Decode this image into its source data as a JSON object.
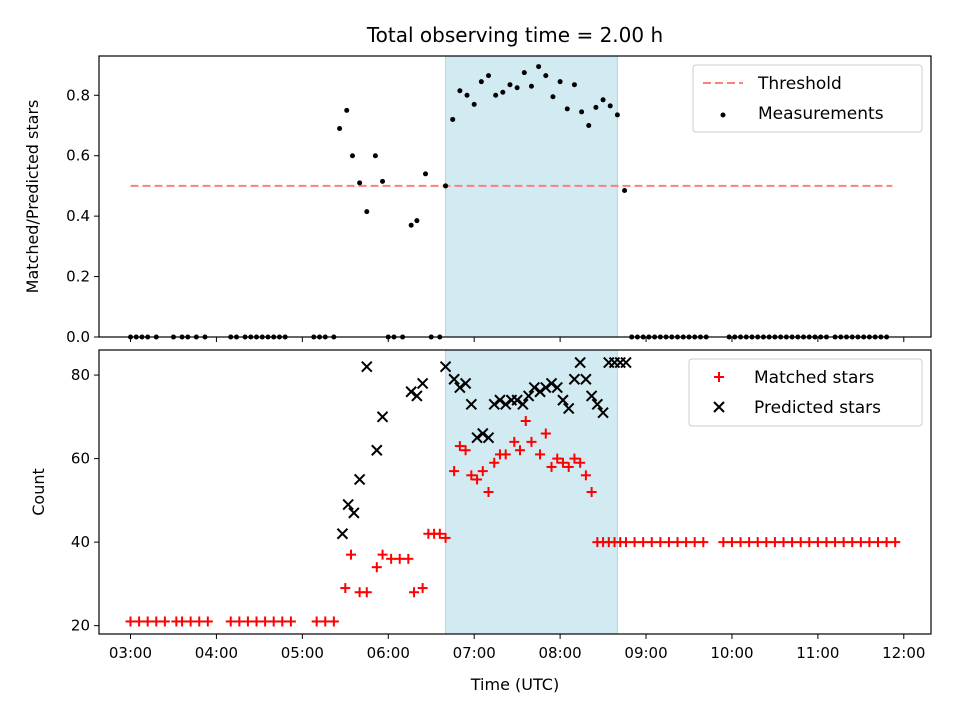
{
  "chart_data": [
    {
      "type": "scatter",
      "title": "Total observing time = 2.00 h",
      "xlabel": "",
      "ylabel": "Matched/Predicted stars",
      "x_ticks": [
        "03:00",
        "04:00",
        "05:00",
        "06:00",
        "07:00",
        "08:00",
        "09:00",
        "10:00",
        "11:00",
        "12:00"
      ],
      "y_ticks": [
        "0.0",
        "0.2",
        "0.4",
        "0.6",
        "0.8"
      ],
      "xlim": [
        "02:38",
        "12:19"
      ],
      "ylim": [
        0,
        0.93
      ],
      "shaded_region": [
        "06:40",
        "08:40"
      ],
      "shade_color": "#add8e6",
      "legend": {
        "position": "top-right",
        "entries": [
          "Threshold",
          "Measurements"
        ]
      },
      "threshold": {
        "name": "Threshold",
        "value": 0.5,
        "x_range": [
          "03:00",
          "11:52"
        ],
        "color": "#ff7f7f"
      },
      "series": [
        {
          "name": "Measurements",
          "color": "#000000",
          "x": [
            "03:00",
            "03:04",
            "03:08",
            "03:12",
            "03:18",
            "03:30",
            "03:36",
            "03:40",
            "03:46",
            "03:52",
            "04:10",
            "04:14",
            "04:20",
            "04:24",
            "04:28",
            "04:32",
            "04:36",
            "04:40",
            "04:44",
            "04:48",
            "05:08",
            "05:12",
            "05:16",
            "05:22",
            "05:26",
            "05:31",
            "05:35",
            "05:40",
            "05:45",
            "05:51",
            "05:56",
            "06:00",
            "06:04",
            "06:10",
            "06:16",
            "06:20",
            "06:26",
            "06:30",
            "06:36",
            "06:40",
            "06:45",
            "06:50",
            "06:55",
            "07:00",
            "07:05",
            "07:10",
            "07:15",
            "07:20",
            "07:25",
            "07:30",
            "07:35",
            "07:40",
            "07:45",
            "07:50",
            "07:55",
            "08:00",
            "08:05",
            "08:10",
            "08:15",
            "08:20",
            "08:25",
            "08:30",
            "08:35",
            "08:40",
            "08:45",
            "08:50",
            "08:54",
            "08:58",
            "09:02",
            "09:06",
            "09:10",
            "09:14",
            "09:18",
            "09:22",
            "09:26",
            "09:30",
            "09:34",
            "09:38",
            "09:42",
            "09:58",
            "10:02",
            "10:06",
            "10:10",
            "10:14",
            "10:18",
            "10:22",
            "10:26",
            "10:30",
            "10:34",
            "10:38",
            "10:42",
            "10:46",
            "10:50",
            "10:54",
            "10:58",
            "11:02",
            "11:06",
            "11:12",
            "11:16",
            "11:20",
            "11:24",
            "11:28",
            "11:32",
            "11:36",
            "11:40",
            "11:44",
            "11:48"
          ],
          "y": [
            0,
            0,
            0,
            0,
            0,
            0,
            0,
            0,
            0,
            0,
            0,
            0,
            0,
            0,
            0,
            0,
            0,
            0,
            0,
            0,
            0,
            0,
            0,
            0,
            0.69,
            0.75,
            0.6,
            0.51,
            0.415,
            0.6,
            0.515,
            0,
            0,
            0,
            0.37,
            0.385,
            0.54,
            0,
            0,
            0.5,
            0.72,
            0.815,
            0.8,
            0.77,
            0.845,
            0.865,
            0.8,
            0.81,
            0.835,
            0.825,
            0.875,
            0.83,
            0.895,
            0.865,
            0.795,
            0.845,
            0.755,
            0.835,
            0.745,
            0.7,
            0.76,
            0.785,
            0.765,
            0.735,
            0.485,
            0,
            0,
            0,
            0,
            0,
            0,
            0,
            0,
            0,
            0,
            0,
            0,
            0,
            0,
            0,
            0,
            0,
            0,
            0,
            0,
            0,
            0,
            0,
            0,
            0,
            0,
            0,
            0,
            0,
            0,
            0,
            0,
            0,
            0,
            0,
            0,
            0,
            0,
            0,
            0,
            0,
            0
          ]
        }
      ]
    },
    {
      "type": "scatter",
      "title": "",
      "xlabel": "Time (UTC)",
      "ylabel": "Count",
      "x_ticks": [
        "03:00",
        "04:00",
        "05:00",
        "06:00",
        "07:00",
        "08:00",
        "09:00",
        "10:00",
        "11:00",
        "12:00"
      ],
      "y_ticks": [
        "20",
        "40",
        "60",
        "80"
      ],
      "xlim": [
        "02:38",
        "12:19"
      ],
      "ylim": [
        18,
        86
      ],
      "shaded_region": [
        "06:40",
        "08:40"
      ],
      "shade_color": "#add8e6",
      "legend": {
        "position": "top-right",
        "entries": [
          "Matched stars",
          "Predicted stars"
        ]
      },
      "series": [
        {
          "name": "Matched stars",
          "marker": "+",
          "color": "#ff0000",
          "x": [
            "03:00",
            "03:06",
            "03:12",
            "03:18",
            "03:24",
            "03:32",
            "03:36",
            "03:42",
            "03:48",
            "03:54",
            "04:10",
            "04:16",
            "04:22",
            "04:28",
            "04:34",
            "04:40",
            "04:46",
            "04:52",
            "05:10",
            "05:16",
            "05:22",
            "05:30",
            "05:34",
            "05:40",
            "05:45",
            "05:52",
            "05:56",
            "06:02",
            "06:08",
            "06:14",
            "06:18",
            "06:24",
            "06:28",
            "06:32",
            "06:36",
            "06:40",
            "06:46",
            "06:50",
            "06:54",
            "06:58",
            "07:02",
            "07:06",
            "07:10",
            "07:14",
            "07:18",
            "07:22",
            "07:28",
            "07:32",
            "07:36",
            "07:40",
            "07:46",
            "07:50",
            "07:54",
            "07:58",
            "08:02",
            "08:06",
            "08:10",
            "08:14",
            "08:18",
            "08:22",
            "08:26",
            "08:30",
            "08:34",
            "08:38",
            "08:42",
            "08:46",
            "08:52",
            "08:58",
            "09:04",
            "09:10",
            "09:16",
            "09:22",
            "09:28",
            "09:34",
            "09:40",
            "09:54",
            "10:00",
            "10:06",
            "10:12",
            "10:18",
            "10:24",
            "10:30",
            "10:36",
            "10:42",
            "10:48",
            "10:54",
            "11:00",
            "11:06",
            "11:12",
            "11:18",
            "11:24",
            "11:30",
            "11:36",
            "11:42",
            "11:48",
            "11:54"
          ],
          "y": [
            21,
            21,
            21,
            21,
            21,
            21,
            21,
            21,
            21,
            21,
            21,
            21,
            21,
            21,
            21,
            21,
            21,
            21,
            21,
            21,
            21,
            29,
            37,
            28,
            28,
            34,
            37,
            36,
            36,
            36,
            28,
            29,
            42,
            42,
            42,
            41,
            57,
            63,
            62,
            56,
            55,
            57,
            52,
            59,
            61,
            61,
            64,
            62,
            69,
            64,
            61,
            66,
            58,
            60,
            59,
            58,
            60,
            59,
            56,
            52,
            40,
            40,
            40,
            40,
            40,
            40,
            40,
            40,
            40,
            40,
            40,
            40,
            40,
            40,
            40,
            40,
            40,
            40,
            40,
            40,
            40,
            40,
            40,
            40,
            40,
            40,
            40,
            40,
            40,
            40,
            40,
            40,
            40,
            40,
            40,
            40
          ]
        },
        {
          "name": "Predicted stars",
          "marker": "x",
          "color": "#000000",
          "x": [
            "05:28",
            "05:32",
            "05:36",
            "05:40",
            "05:45",
            "05:52",
            "05:56",
            "06:16",
            "06:20",
            "06:24",
            "06:40",
            "06:46",
            "06:50",
            "06:54",
            "06:58",
            "07:02",
            "07:06",
            "07:10",
            "07:14",
            "07:18",
            "07:22",
            "07:26",
            "07:30",
            "07:34",
            "07:38",
            "07:42",
            "07:46",
            "07:50",
            "07:54",
            "07:58",
            "08:02",
            "08:06",
            "08:10",
            "08:14",
            "08:18",
            "08:22",
            "08:26",
            "08:30",
            "08:34",
            "08:38",
            "08:42",
            "08:46"
          ],
          "y": [
            42,
            49,
            47,
            55,
            82,
            62,
            70,
            76,
            75,
            78,
            82,
            79,
            77,
            78,
            73,
            65,
            66,
            65,
            73,
            74,
            73,
            74,
            74,
            73,
            75,
            77,
            76,
            77,
            78,
            77,
            74,
            72,
            79,
            83,
            79,
            75,
            73,
            71,
            83,
            83,
            83,
            83
          ]
        }
      ]
    }
  ]
}
